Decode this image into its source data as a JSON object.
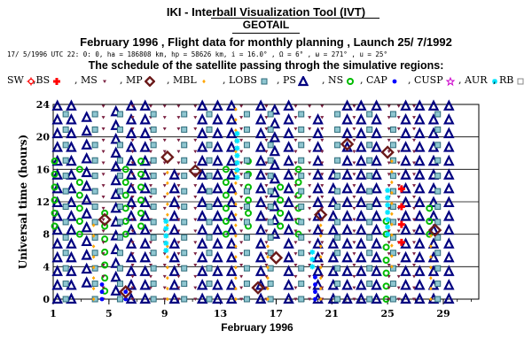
{
  "header": {
    "tool_title": "IKI - Interball Visualization Tool (IVT)",
    "satellite": "GEOTAIL",
    "subtitle": "February 1996 ,  Flight data for monthly planning ,   Launch 25/ 7/1992",
    "orbit_line": "17/ 5/1996 UTC 22: 0: 0,  ha = 186808 km,  hp =  58626 km,  i =  16.0°  ,  Ω =    6°  ,  ω = 271°  ,  u =  25°",
    "schedule_title": "The schedule of the satellite passing throgh the simulative regions:"
  },
  "legend": [
    {
      "label": "SW",
      "icon": "sun-icon",
      "color": "#ff0000"
    },
    {
      "label": ",BS",
      "icon": "cross-icon",
      "color": "#ff0000"
    },
    {
      "label": ", MS",
      "icon": "triangle-down-icon",
      "color": "#7a2040"
    },
    {
      "label": ", MP",
      "icon": "diamond-icon",
      "color": "#6b1a1a"
    },
    {
      "label": ", MBL",
      "icon": "diamond-icon",
      "color": "#ffa500"
    },
    {
      "label": ", LOBS",
      "icon": "square-icon",
      "color": "#3d7a8a"
    },
    {
      "label": ", PS",
      "icon": "triangle-up-icon",
      "color": "#000080"
    },
    {
      "label": ", NS",
      "icon": "ring-icon",
      "color": "#00bb00"
    },
    {
      "label": ", CAP",
      "icon": "dot-icon",
      "color": "#0000ff"
    },
    {
      "label": ", CUSP",
      "icon": "star-icon",
      "color": "#cc00cc"
    },
    {
      "label": ", AUR",
      "icon": "asterisk-icon",
      "color": "#00e5ff"
    },
    {
      "label": ", RB",
      "icon": "square-outline-icon",
      "color": "#888888"
    }
  ],
  "chart_data": {
    "type": "scatter",
    "title": "",
    "xlabel": "February 1996",
    "ylabel": "Universal time (hours)",
    "xlim": [
      1,
      29
    ],
    "ylim": [
      0,
      24
    ],
    "x_ticks": [
      1,
      5,
      9,
      13,
      17,
      21,
      25,
      29
    ],
    "y_ticks": [
      0,
      4,
      8,
      12,
      16,
      20,
      24
    ],
    "grid": "horizontal",
    "legend_position": "top",
    "series": [
      {
        "name": "PS",
        "color": "#000080",
        "points": [
          [
            1.3,
            [
              0,
              24
            ]
          ],
          [
            2.3,
            [
              0,
              24
            ]
          ],
          [
            3.4,
            [
              2,
              24
            ]
          ],
          [
            5.5,
            [
              1,
              24
            ]
          ],
          [
            6.6,
            [
              0,
              24
            ]
          ],
          [
            7.6,
            [
              0,
              24
            ]
          ],
          [
            9.7,
            [
              0,
              16
            ]
          ],
          [
            11.7,
            [
              0,
              24
            ]
          ],
          [
            12.8,
            [
              0,
              24
            ]
          ],
          [
            13.8,
            [
              0,
              24
            ]
          ],
          [
            15.9,
            [
              0,
              24
            ]
          ],
          [
            16.9,
            [
              8,
              24
            ]
          ],
          [
            17.9,
            [
              0,
              24
            ]
          ],
          [
            20.0,
            [
              0,
              23
            ]
          ],
          [
            21.1,
            [
              0,
              16
            ]
          ],
          [
            22.1,
            [
              0,
              24
            ]
          ],
          [
            23.1,
            [
              0,
              24
            ]
          ],
          [
            24.2,
            [
              0,
              24
            ]
          ],
          [
            26.3,
            [
              0,
              24
            ]
          ],
          [
            27.3,
            [
              0,
              24
            ]
          ],
          [
            28.3,
            [
              0,
              24
            ]
          ],
          [
            29.4,
            [
              0,
              24
            ]
          ]
        ]
      },
      {
        "name": "NS",
        "color": "#00bb00",
        "points": [
          [
            1.1,
            [
              9,
              17
            ]
          ],
          [
            2.9,
            [
              8,
              17
            ]
          ],
          [
            4.7,
            [
              1,
              12
            ]
          ],
          [
            6.2,
            [
              8,
              16
            ]
          ],
          [
            7.3,
            [
              9,
              17
            ]
          ],
          [
            13.4,
            [
              8,
              16
            ]
          ],
          [
            15.0,
            [
              9,
              17
            ]
          ],
          [
            17.3,
            [
              9,
              15
            ]
          ],
          [
            18.6,
            [
              8,
              16
            ]
          ],
          [
            24.9,
            [
              0,
              10
            ]
          ],
          [
            28.0,
            [
              8,
              12
            ]
          ]
        ]
      },
      {
        "name": "MS",
        "color": "#7a2040",
        "points": [
          [
            4.6,
            [
              0,
              24
            ]
          ],
          [
            6.7,
            [
              0,
              24
            ]
          ],
          [
            8.0,
            [
              0,
              24
            ]
          ],
          [
            9.0,
            [
              0,
              24
            ]
          ],
          [
            10.0,
            [
              0,
              24
            ]
          ],
          [
            11.2,
            [
              0,
              24
            ]
          ],
          [
            14.5,
            [
              0,
              24
            ]
          ],
          [
            16.3,
            [
              0,
              24
            ]
          ],
          [
            18.4,
            [
              0,
              24
            ]
          ],
          [
            19.4,
            [
              0,
              24
            ]
          ],
          [
            20.3,
            [
              0,
              24
            ]
          ],
          [
            22.6,
            [
              0,
              24
            ]
          ],
          [
            25.1,
            [
              0,
              24
            ]
          ],
          [
            25.8,
            [
              0,
              24
            ]
          ],
          [
            26.9,
            [
              0,
              24
            ]
          ]
        ]
      },
      {
        "name": "LOBS",
        "color": "#3d7a8a",
        "points": [
          [
            1.9,
            [
              0,
              24
            ]
          ],
          [
            4.0,
            [
              0,
              24
            ]
          ],
          [
            5.8,
            [
              0,
              24
            ]
          ],
          [
            8.2,
            [
              0,
              24
            ]
          ],
          [
            10.4,
            [
              0,
              24
            ]
          ],
          [
            12.2,
            [
              0,
              24
            ]
          ],
          [
            14.9,
            [
              0,
              24
            ]
          ],
          [
            16.6,
            [
              0,
              24
            ]
          ],
          [
            18.8,
            [
              0,
              24
            ]
          ],
          [
            21.4,
            [
              0,
              24
            ]
          ],
          [
            23.7,
            [
              0,
              24
            ]
          ],
          [
            25.4,
            [
              0,
              24
            ]
          ],
          [
            28.6,
            [
              0,
              24
            ]
          ]
        ]
      },
      {
        "name": "MBL",
        "color": "#ffa500",
        "points": [
          [
            3.9,
            [
              0,
              10
            ]
          ],
          [
            9.2,
            [
              0,
              18
            ]
          ],
          [
            14.1,
            [
              0,
              24
            ]
          ],
          [
            16.4,
            [
              0,
              7
            ]
          ],
          [
            20.2,
            [
              0,
              10
            ]
          ],
          [
            25.3,
            [
              4,
              18
            ]
          ],
          [
            28.1,
            [
              0,
              9
            ]
          ]
        ]
      },
      {
        "name": "AUR",
        "color": "#00e5ff",
        "points": [
          [
            9.1,
            [
              6,
              10
            ]
          ],
          [
            14.2,
            [
              15,
              21
            ]
          ],
          [
            19.6,
            [
              4,
              6
            ]
          ],
          [
            25.0,
            [
              8,
              14
            ]
          ]
        ]
      },
      {
        "name": "CAP",
        "color": "#0000ff",
        "points": [
          [
            4.5,
            [
              0,
              2
            ]
          ],
          [
            6.2,
            [
              0,
              1
            ]
          ],
          [
            19.8,
            [
              0,
              3
            ]
          ]
        ]
      },
      {
        "name": "BS",
        "color": "#ff0000",
        "points": [
          [
            26.0,
            [
              7,
              15
            ]
          ]
        ]
      },
      {
        "name": "MP",
        "color": "#6b1a1a",
        "points": [
          [
            4.7,
            9.8
          ],
          [
            6.2,
            0.9
          ],
          [
            9.2,
            17.5
          ],
          [
            11.2,
            15.8
          ],
          [
            15.7,
            1.4
          ],
          [
            17.0,
            5.1
          ],
          [
            20.2,
            10.4
          ],
          [
            22.1,
            19.1
          ],
          [
            25.0,
            18.1
          ],
          [
            28.4,
            8.5
          ]
        ]
      }
    ]
  }
}
